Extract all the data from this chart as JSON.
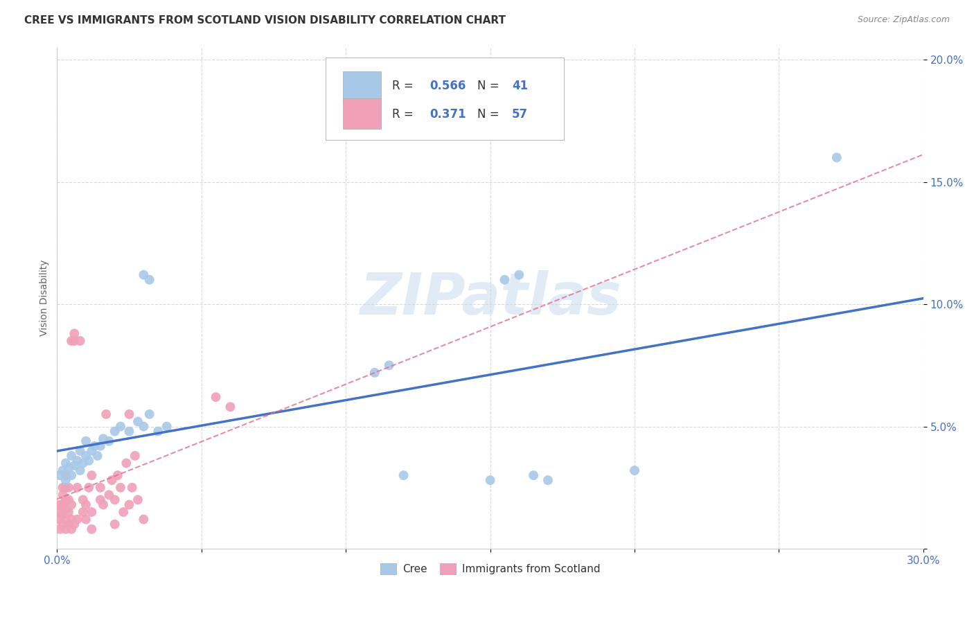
{
  "title": "CREE VS IMMIGRANTS FROM SCOTLAND VISION DISABILITY CORRELATION CHART",
  "source": "Source: ZipAtlas.com",
  "ylabel": "Vision Disability",
  "watermark": "ZIPatlas",
  "xlim": [
    0.0,
    0.3
  ],
  "ylim": [
    0.0,
    0.205
  ],
  "xticks": [
    0.0,
    0.05,
    0.1,
    0.15,
    0.2,
    0.25,
    0.3
  ],
  "yticks": [
    0.0,
    0.05,
    0.1,
    0.15,
    0.2
  ],
  "xtick_labels": [
    "0.0%",
    "",
    "",
    "",
    "",
    "",
    "30.0%"
  ],
  "ytick_labels": [
    "",
    "5.0%",
    "10.0%",
    "15.0%",
    "20.0%"
  ],
  "legend_blue_R": "0.566",
  "legend_blue_N": "41",
  "legend_pink_R": "0.371",
  "legend_pink_N": "57",
  "blue_color": "#a8c8e8",
  "pink_color": "#f0a0b8",
  "blue_line_color": "#4472c4",
  "pink_line_color": "#e07090",
  "tick_color": "#4472c4",
  "cree_scatter": [
    [
      0.001,
      0.03
    ],
    [
      0.002,
      0.032
    ],
    [
      0.003,
      0.028
    ],
    [
      0.003,
      0.035
    ],
    [
      0.004,
      0.033
    ],
    [
      0.005,
      0.03
    ],
    [
      0.005,
      0.038
    ],
    [
      0.006,
      0.034
    ],
    [
      0.007,
      0.036
    ],
    [
      0.008,
      0.032
    ],
    [
      0.008,
      0.04
    ],
    [
      0.009,
      0.035
    ],
    [
      0.01,
      0.038
    ],
    [
      0.01,
      0.044
    ],
    [
      0.011,
      0.036
    ],
    [
      0.012,
      0.04
    ],
    [
      0.013,
      0.042
    ],
    [
      0.014,
      0.038
    ],
    [
      0.015,
      0.042
    ],
    [
      0.016,
      0.045
    ],
    [
      0.018,
      0.044
    ],
    [
      0.02,
      0.048
    ],
    [
      0.022,
      0.05
    ],
    [
      0.025,
      0.048
    ],
    [
      0.028,
      0.052
    ],
    [
      0.03,
      0.05
    ],
    [
      0.032,
      0.055
    ],
    [
      0.035,
      0.048
    ],
    [
      0.038,
      0.05
    ],
    [
      0.03,
      0.112
    ],
    [
      0.032,
      0.11
    ],
    [
      0.12,
      0.03
    ],
    [
      0.15,
      0.028
    ],
    [
      0.155,
      0.11
    ],
    [
      0.16,
      0.112
    ],
    [
      0.165,
      0.03
    ],
    [
      0.17,
      0.028
    ],
    [
      0.2,
      0.032
    ],
    [
      0.27,
      0.16
    ],
    [
      0.115,
      0.075
    ],
    [
      0.11,
      0.072
    ]
  ],
  "scotland_scatter": [
    [
      0.001,
      0.008
    ],
    [
      0.001,
      0.012
    ],
    [
      0.001,
      0.015
    ],
    [
      0.001,
      0.018
    ],
    [
      0.002,
      0.01
    ],
    [
      0.002,
      0.014
    ],
    [
      0.002,
      0.018
    ],
    [
      0.002,
      0.022
    ],
    [
      0.002,
      0.025
    ],
    [
      0.003,
      0.008
    ],
    [
      0.003,
      0.012
    ],
    [
      0.003,
      0.016
    ],
    [
      0.003,
      0.02
    ],
    [
      0.003,
      0.025
    ],
    [
      0.003,
      0.03
    ],
    [
      0.004,
      0.01
    ],
    [
      0.004,
      0.015
    ],
    [
      0.004,
      0.02
    ],
    [
      0.004,
      0.025
    ],
    [
      0.005,
      0.008
    ],
    [
      0.005,
      0.012
    ],
    [
      0.005,
      0.018
    ],
    [
      0.005,
      0.085
    ],
    [
      0.006,
      0.01
    ],
    [
      0.006,
      0.085
    ],
    [
      0.006,
      0.088
    ],
    [
      0.007,
      0.012
    ],
    [
      0.007,
      0.025
    ],
    [
      0.008,
      0.085
    ],
    [
      0.009,
      0.015
    ],
    [
      0.009,
      0.02
    ],
    [
      0.01,
      0.012
    ],
    [
      0.01,
      0.018
    ],
    [
      0.011,
      0.025
    ],
    [
      0.012,
      0.008
    ],
    [
      0.012,
      0.015
    ],
    [
      0.012,
      0.03
    ],
    [
      0.015,
      0.02
    ],
    [
      0.015,
      0.025
    ],
    [
      0.016,
      0.018
    ],
    [
      0.017,
      0.055
    ],
    [
      0.018,
      0.022
    ],
    [
      0.019,
      0.028
    ],
    [
      0.02,
      0.01
    ],
    [
      0.02,
      0.02
    ],
    [
      0.021,
      0.03
    ],
    [
      0.022,
      0.025
    ],
    [
      0.023,
      0.015
    ],
    [
      0.024,
      0.035
    ],
    [
      0.025,
      0.018
    ],
    [
      0.025,
      0.055
    ],
    [
      0.026,
      0.025
    ],
    [
      0.027,
      0.038
    ],
    [
      0.028,
      0.02
    ],
    [
      0.03,
      0.012
    ],
    [
      0.055,
      0.062
    ],
    [
      0.06,
      0.058
    ]
  ],
  "background_color": "#ffffff",
  "grid_color": "#d0d0d0",
  "title_fontsize": 11,
  "label_fontsize": 10,
  "tick_fontsize": 11,
  "marker_size": 100
}
